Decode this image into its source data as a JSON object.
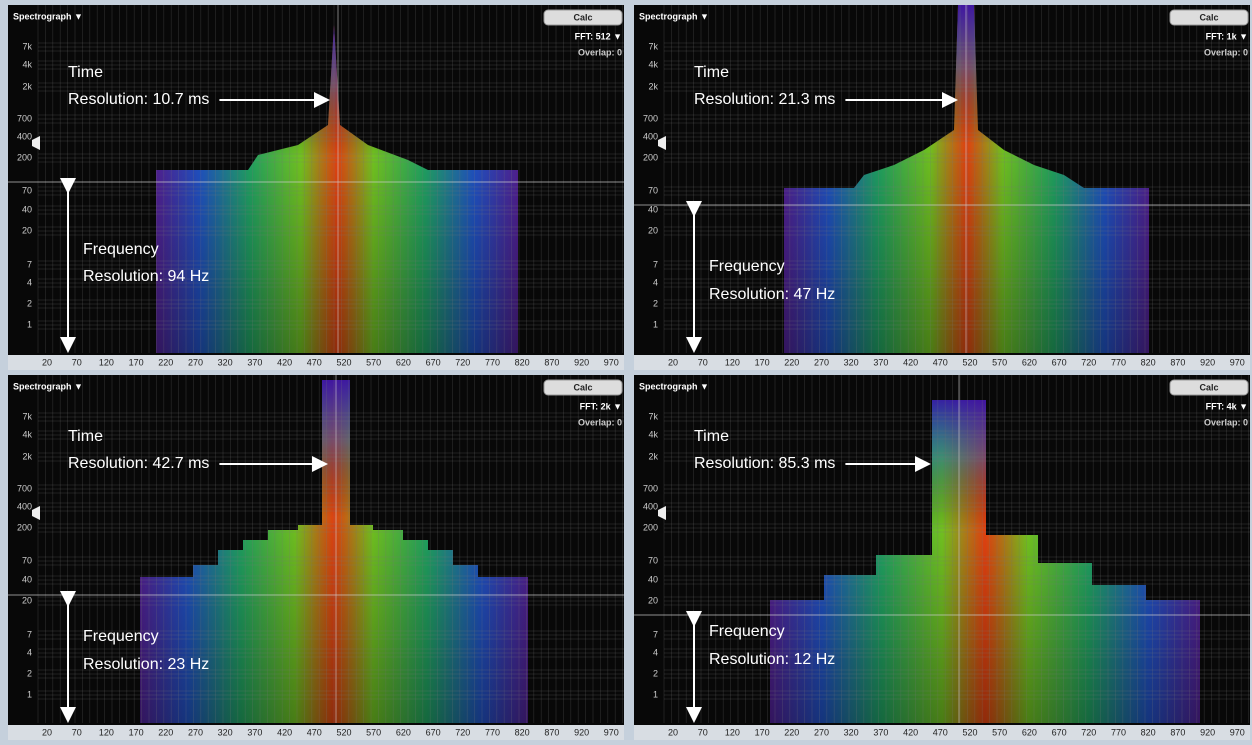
{
  "panels": [
    {
      "title": "Spectrograph ▼",
      "button": "Calc",
      "fft": "FFT: 512 ▼",
      "overlap": "Overlap: 0",
      "time_label": "Time",
      "time_resolution": "Resolution: 10.7 ms",
      "frequency_label": "Frequency",
      "frequency_resolution": "Resolution: 94 Hz"
    },
    {
      "title": "Spectrograph ▼",
      "button": "Calc",
      "fft": "FFT: 1k ▼",
      "overlap": "Overlap: 0",
      "time_label": "Time",
      "time_resolution": "Resolution: 21.3 ms",
      "frequency_label": "Frequency",
      "frequency_resolution": "Resolution: 47 Hz"
    },
    {
      "title": "Spectrograph ▼",
      "button": "Calc",
      "fft": "FFT: 2k ▼",
      "overlap": "Overlap: 0",
      "time_label": "Time",
      "time_resolution": "Resolution: 42.7 ms",
      "frequency_label": "Frequency",
      "frequency_resolution": "Resolution: 23 Hz"
    },
    {
      "title": "Spectrograph ▼",
      "button": "Calc",
      "fft": "FFT: 4k ▼",
      "overlap": "Overlap: 0",
      "time_label": "Time",
      "time_resolution": "Resolution: 85.3 ms",
      "frequency_label": "Frequency",
      "frequency_resolution": "Resolution: 12 Hz"
    }
  ],
  "y_labels": [
    "7k",
    "4k",
    "2k",
    "700",
    "400",
    "200",
    "70",
    "40",
    "20",
    "7",
    "4",
    "2",
    "1"
  ],
  "x_labels": [
    "20",
    "70",
    "120",
    "170",
    "220",
    "270",
    "320",
    "370",
    "420",
    "470",
    "520",
    "570",
    "620",
    "670",
    "720",
    "770",
    "820",
    "870",
    "920",
    "970"
  ]
}
